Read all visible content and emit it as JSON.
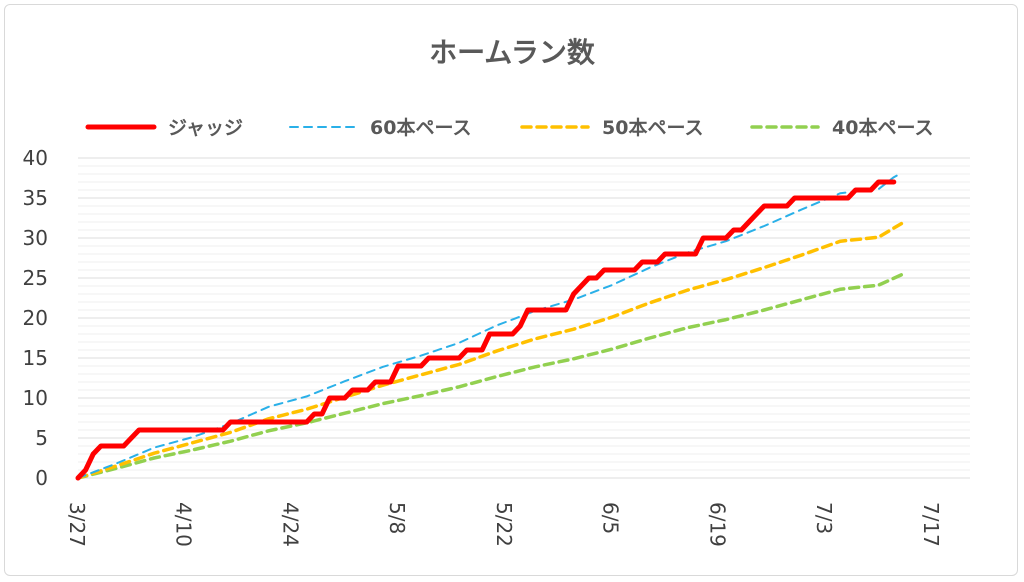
{
  "colors": {
    "judge": "#ff0000",
    "pace60": "#2ab0e8",
    "pace50": "#ffc000",
    "pace40": "#92d050",
    "grid": "#e3e3e3",
    "text": "#595959"
  },
  "chart_data": {
    "type": "line",
    "title": "ホームラン数",
    "x_unit": "day index from 3/27",
    "xlim": [
      0,
      117
    ],
    "ylim": [
      0,
      40
    ],
    "y_ticks": [
      0,
      5,
      10,
      15,
      20,
      25,
      30,
      35,
      40
    ],
    "minor_grid_step": 1,
    "x_ticks": [
      {
        "label": "3/27",
        "day": 0
      },
      {
        "label": "4/10",
        "day": 14
      },
      {
        "label": "4/24",
        "day": 28
      },
      {
        "label": "5/8",
        "day": 42
      },
      {
        "label": "5/22",
        "day": 56
      },
      {
        "label": "6/5",
        "day": 70
      },
      {
        "label": "6/19",
        "day": 84
      },
      {
        "label": "7/3",
        "day": 98
      },
      {
        "label": "7/17",
        "day": 112
      }
    ],
    "legend_position": "top",
    "series": [
      {
        "name": "ジャッジ",
        "style": "solid-thick",
        "points": [
          [
            0,
            0
          ],
          [
            1,
            1
          ],
          [
            2,
            3
          ],
          [
            3,
            4
          ],
          [
            6,
            4
          ],
          [
            8,
            6
          ],
          [
            19,
            6
          ],
          [
            20,
            7
          ],
          [
            30,
            7
          ],
          [
            31,
            8
          ],
          [
            32,
            8
          ],
          [
            33,
            10
          ],
          [
            35,
            10
          ],
          [
            36,
            11
          ],
          [
            38,
            11
          ],
          [
            39,
            12
          ],
          [
            41,
            12
          ],
          [
            42,
            14
          ],
          [
            45,
            14
          ],
          [
            46,
            15
          ],
          [
            50,
            15
          ],
          [
            51,
            16
          ],
          [
            53,
            16
          ],
          [
            54,
            18
          ],
          [
            57,
            18
          ],
          [
            58,
            19
          ],
          [
            59,
            21
          ],
          [
            64,
            21
          ],
          [
            65,
            23
          ],
          [
            67,
            25
          ],
          [
            68,
            25
          ],
          [
            69,
            26
          ],
          [
            73,
            26
          ],
          [
            74,
            27
          ],
          [
            76,
            27
          ],
          [
            77,
            28
          ],
          [
            81,
            28
          ],
          [
            82,
            30
          ],
          [
            85,
            30
          ],
          [
            86,
            31
          ],
          [
            87,
            31
          ],
          [
            88,
            32
          ],
          [
            89,
            33
          ],
          [
            90,
            34
          ],
          [
            93,
            34
          ],
          [
            94,
            35
          ],
          [
            101,
            35
          ],
          [
            102,
            36
          ],
          [
            104,
            36
          ],
          [
            105,
            37
          ],
          [
            107,
            37
          ]
        ]
      },
      {
        "name": "60本ペース",
        "style": "dashed-thin",
        "points": [
          [
            0,
            0
          ],
          [
            5,
            1.8
          ],
          [
            10,
            3.8
          ],
          [
            15,
            5.1
          ],
          [
            20,
            6.8
          ],
          [
            25,
            8.9
          ],
          [
            30,
            10.2
          ],
          [
            35,
            12.1
          ],
          [
            40,
            13.9
          ],
          [
            45,
            15.3
          ],
          [
            50,
            16.9
          ],
          [
            55,
            19.1
          ],
          [
            60,
            20.9
          ],
          [
            65,
            22.3
          ],
          [
            70,
            24.1
          ],
          [
            75,
            26.3
          ],
          [
            80,
            28.2
          ],
          [
            85,
            29.6
          ],
          [
            90,
            31.5
          ],
          [
            95,
            33.6
          ],
          [
            100,
            35.6
          ],
          [
            105,
            36.1
          ],
          [
            107,
            37.6
          ],
          [
            108,
            38.1
          ]
        ]
      },
      {
        "name": "50本ペース",
        "style": "dashed-thick",
        "points": [
          [
            0,
            0
          ],
          [
            5,
            1.5
          ],
          [
            10,
            3.1
          ],
          [
            15,
            4.4
          ],
          [
            20,
            5.7
          ],
          [
            25,
            7.4
          ],
          [
            30,
            8.6
          ],
          [
            35,
            10.1
          ],
          [
            40,
            11.6
          ],
          [
            45,
            12.9
          ],
          [
            50,
            14.2
          ],
          [
            55,
            15.9
          ],
          [
            60,
            17.4
          ],
          [
            65,
            18.6
          ],
          [
            70,
            20.1
          ],
          [
            75,
            21.9
          ],
          [
            80,
            23.5
          ],
          [
            85,
            24.8
          ],
          [
            90,
            26.3
          ],
          [
            95,
            27.9
          ],
          [
            100,
            29.6
          ],
          [
            105,
            30.1
          ],
          [
            108,
            31.8
          ]
        ]
      },
      {
        "name": "40本ペース",
        "style": "dashed-thick",
        "points": [
          [
            0,
            0
          ],
          [
            5,
            1.2
          ],
          [
            10,
            2.5
          ],
          [
            15,
            3.5
          ],
          [
            20,
            4.6
          ],
          [
            25,
            5.9
          ],
          [
            30,
            6.9
          ],
          [
            35,
            8.1
          ],
          [
            40,
            9.3
          ],
          [
            45,
            10.3
          ],
          [
            50,
            11.4
          ],
          [
            55,
            12.7
          ],
          [
            60,
            13.9
          ],
          [
            65,
            14.9
          ],
          [
            70,
            16.1
          ],
          [
            75,
            17.5
          ],
          [
            80,
            18.8
          ],
          [
            85,
            19.8
          ],
          [
            90,
            21.0
          ],
          [
            95,
            22.3
          ],
          [
            100,
            23.6
          ],
          [
            105,
            24.1
          ],
          [
            108,
            25.4
          ]
        ]
      }
    ]
  }
}
